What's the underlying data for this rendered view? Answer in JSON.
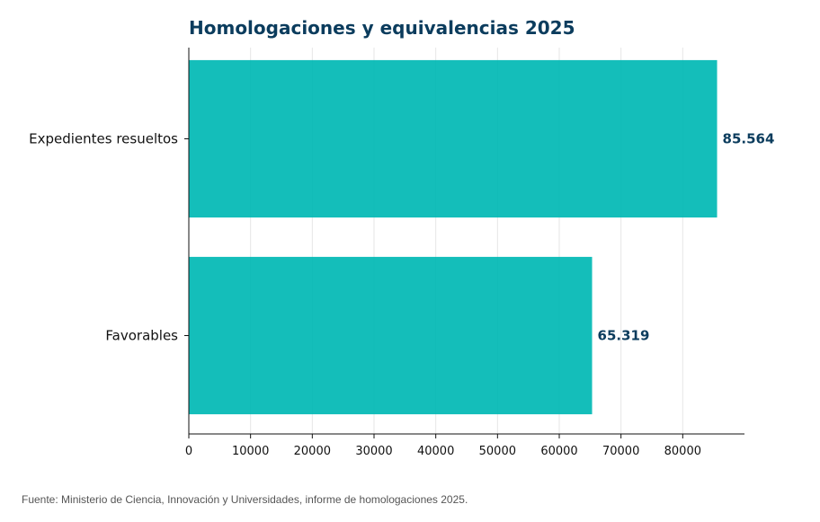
{
  "chart_data": {
    "type": "bar",
    "orientation": "horizontal",
    "title": "Homologaciones y equivalencias 2025",
    "categories": [
      "Expedientes resueltos",
      "Favorables"
    ],
    "values": [
      85564,
      65319
    ],
    "value_labels": [
      "85.564",
      "65.319"
    ],
    "x_ticks": [
      0,
      10000,
      20000,
      30000,
      40000,
      50000,
      60000,
      70000,
      80000
    ],
    "xlim": [
      0,
      90000
    ],
    "xlabel": "",
    "ylabel": "",
    "grid": "vertical",
    "legend": "none",
    "colors": {
      "bar": "#00b8b4",
      "title": "#0b3c5d",
      "value_label": "#0b3c5d",
      "grid": "#e6e6e6",
      "axis": "#111111"
    }
  },
  "source": "Fuente: Ministerio de Ciencia, Innovación y Universidades, informe de homologaciones 2025."
}
